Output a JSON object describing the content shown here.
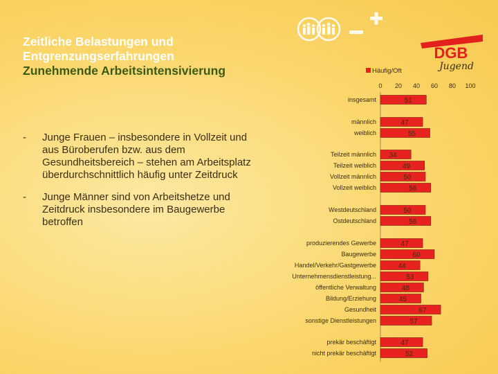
{
  "slide": {
    "title_lines": [
      "Zeitliche Belastungen und",
      "Entgrenzungserfahrungen"
    ],
    "subtitle": "Zunehmende Arbeitsintensivierung",
    "bullets": [
      "Junge Frauen – insbesondere in Vollzeit und aus Büroberufen bzw. aus dem Gesundheitsbereich – stehen am Arbeitsplatz überdurchschnittlich häufig unter Zeitdruck",
      "Junge Männer sind von Arbeitshetze und Zeitdruck insbesondere im Baugewerbe betroffen"
    ],
    "bullet_marker": "-",
    "logo_text": "DGB",
    "logo_sub": "Jugend",
    "deco_icon": "people-plus-minus-icon"
  },
  "colors": {
    "bar": "#e8231f",
    "background": "#fbd66b",
    "title": "#ffffff",
    "subtitle": "#3c5a14",
    "logo_red": "#e2211c"
  },
  "chart_data": {
    "type": "bar",
    "orientation": "horizontal",
    "legend": "Häufig/Oft",
    "legend_position": "top",
    "xlim": [
      0,
      100
    ],
    "xticks": [
      0,
      20,
      40,
      60,
      80,
      100
    ],
    "grid": false,
    "categories": [
      "insgesamt",
      "männlich",
      "weiblich",
      "Teilzeit männlich",
      "Teilzeit weiblich",
      "Vollzeit männlich",
      "Vollzeit weiblich",
      "Westdeutschland",
      "Ostdeutschland",
      "produzierendes Gewerbe",
      "Baugewerbe",
      "Handel/Verkehr/Gastgewerbe",
      "Unternehmensdienstleistung...",
      "öffentliche Verwaltung",
      "Bildung/Erziehung",
      "Gesundheit",
      "sonstige Dienstleistungen",
      "prekär beschäftigt",
      "nicht prekär beschäftigt"
    ],
    "values": [
      51,
      47,
      55,
      34,
      49,
      50,
      56,
      50,
      56,
      47,
      60,
      44,
      53,
      48,
      45,
      67,
      57,
      47,
      52
    ]
  }
}
